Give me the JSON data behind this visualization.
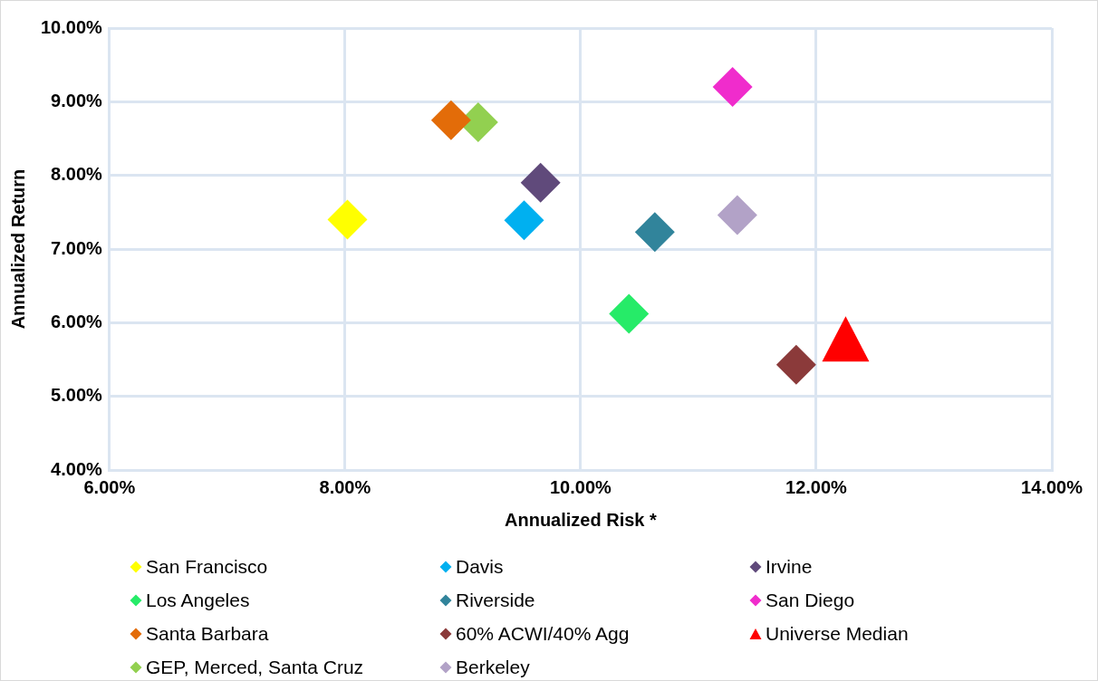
{
  "chart_data": {
    "type": "scatter",
    "xlabel": "Annualized Risk *",
    "ylabel": "Annualized Return",
    "xlim": [
      6,
      14
    ],
    "xticks": [
      {
        "value": 6,
        "label": "6.00%"
      },
      {
        "value": 8,
        "label": "8.00%"
      },
      {
        "value": 10,
        "label": "10.00%"
      },
      {
        "value": 12,
        "label": "12.00%"
      },
      {
        "value": 14,
        "label": "14.00%"
      }
    ],
    "ylim": [
      4,
      10
    ],
    "yticks": [
      {
        "value": 4,
        "label": "4.00%"
      },
      {
        "value": 5,
        "label": "5.00%"
      },
      {
        "value": 6,
        "label": "6.00%"
      },
      {
        "value": 7,
        "label": "7.00%"
      },
      {
        "value": 8,
        "label": "8.00%"
      },
      {
        "value": 9,
        "label": "9.00%"
      },
      {
        "value": 10,
        "label": "10.00%"
      }
    ],
    "grid": true,
    "legend": "bottom",
    "marker": "diamond",
    "series": [
      {
        "name": "San Francisco",
        "color": "#ffff00",
        "x": [
          8.02
        ],
        "values": [
          7.4
        ]
      },
      {
        "name": "Davis",
        "color": "#00b0f0",
        "x": [
          9.52
        ],
        "values": [
          7.39
        ]
      },
      {
        "name": "Irvine",
        "color": "#604a7b",
        "x": [
          9.66
        ],
        "values": [
          7.9
        ]
      },
      {
        "name": "Los Angeles",
        "color": "#26eb68",
        "x": [
          10.41
        ],
        "values": [
          6.12
        ]
      },
      {
        "name": "Riverside",
        "color": "#31849b",
        "x": [
          10.63
        ],
        "values": [
          7.23
        ]
      },
      {
        "name": "San Diego",
        "color": "#f02ccc",
        "x": [
          11.29
        ],
        "values": [
          9.2
        ]
      },
      {
        "name": "Santa Barbara",
        "color": "#e36c09",
        "x": [
          8.9
        ],
        "values": [
          8.75
        ]
      },
      {
        "name": "60% ACWI/40% Agg",
        "color": "#8b3a3a",
        "x": [
          11.83
        ],
        "values": [
          5.43
        ]
      },
      {
        "name": "Universe Median",
        "color": "#ff0000",
        "marker": "triangle",
        "x": [
          12.25
        ],
        "values": [
          5.78
        ]
      },
      {
        "name": "GEP, Merced, Santa Cruz",
        "color": "#92d050",
        "x": [
          9.13
        ],
        "values": [
          8.72
        ]
      },
      {
        "name": "Berkeley",
        "color": "#b2a2c7",
        "x": [
          11.33
        ],
        "values": [
          7.46
        ]
      }
    ]
  }
}
